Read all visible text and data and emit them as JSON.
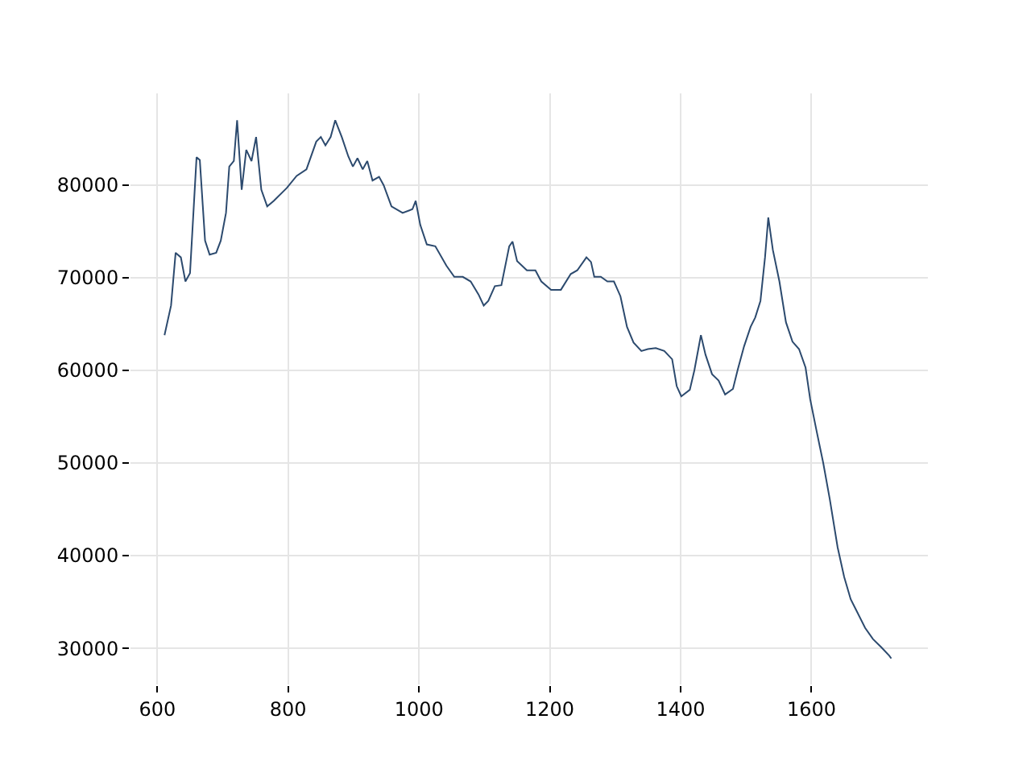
{
  "chart_data": {
    "type": "line",
    "x": [
      611,
      621,
      628,
      636,
      643,
      650,
      660,
      665,
      673,
      680,
      690,
      697,
      705,
      710,
      717,
      722,
      729,
      736,
      744,
      751,
      759,
      768,
      778,
      798,
      813,
      828,
      843,
      850,
      857,
      865,
      872,
      882,
      892,
      899,
      906,
      914,
      921,
      929,
      939,
      946,
      958,
      975,
      990,
      995,
      1002,
      1012,
      1025,
      1042,
      1054,
      1067,
      1079,
      1091,
      1099,
      1106,
      1116,
      1126,
      1138,
      1143,
      1150,
      1165,
      1178,
      1187,
      1202,
      1217,
      1232,
      1242,
      1256,
      1263,
      1268,
      1278,
      1288,
      1298,
      1308,
      1318,
      1328,
      1340,
      1350,
      1362,
      1375,
      1387,
      1394,
      1401,
      1414,
      1421,
      1431,
      1438,
      1448,
      1458,
      1468,
      1480,
      1487,
      1497,
      1507,
      1514,
      1522,
      1529,
      1534,
      1541,
      1551,
      1561,
      1571,
      1581,
      1591,
      1598,
      1608,
      1618,
      1628,
      1640,
      1650,
      1660,
      1670,
      1682,
      1694,
      1707,
      1719,
      1722
    ],
    "series": [
      {
        "color": "#2c4a6e",
        "values": [
          63800,
          67000,
          72700,
          72200,
          69600,
          70500,
          83000,
          82700,
          74000,
          72500,
          72700,
          74000,
          77000,
          82000,
          82600,
          87000,
          79500,
          83800,
          82600,
          85200,
          79500,
          77700,
          78300,
          79700,
          81000,
          81700,
          84700,
          85200,
          84300,
          85200,
          87000,
          85200,
          83100,
          82000,
          82900,
          81700,
          82600,
          80500,
          80900,
          80000,
          77700,
          77000,
          77400,
          78300,
          75700,
          73600,
          73400,
          71300,
          70100,
          70100,
          69600,
          68200,
          67000,
          67500,
          69100,
          69200,
          73400,
          73900,
          71800,
          70800,
          70800,
          69600,
          68700,
          68700,
          70400,
          70800,
          72200,
          71700,
          70100,
          70100,
          69600,
          69600,
          68000,
          64700,
          63000,
          62100,
          62300,
          62400,
          62100,
          61200,
          58300,
          57200,
          57900,
          60000,
          63800,
          61700,
          59600,
          58900,
          57400,
          58000,
          60000,
          62600,
          64700,
          65700,
          67500,
          72200,
          76500,
          73000,
          69600,
          65200,
          63100,
          62300,
          60300,
          56900,
          53400,
          50000,
          46100,
          40900,
          37700,
          35300,
          33900,
          32200,
          31000,
          30100,
          29200,
          28900
        ]
      }
    ],
    "xlim": [
      559,
      1778
    ],
    "xticks": [
      600,
      800,
      1000,
      1200,
      1400,
      1600
    ],
    "ylim": [
      26100,
      89900
    ],
    "yticks": [
      30000,
      40000,
      50000,
      60000,
      70000,
      80000
    ],
    "grid": true,
    "marker": "none",
    "line_style": "solid"
  }
}
